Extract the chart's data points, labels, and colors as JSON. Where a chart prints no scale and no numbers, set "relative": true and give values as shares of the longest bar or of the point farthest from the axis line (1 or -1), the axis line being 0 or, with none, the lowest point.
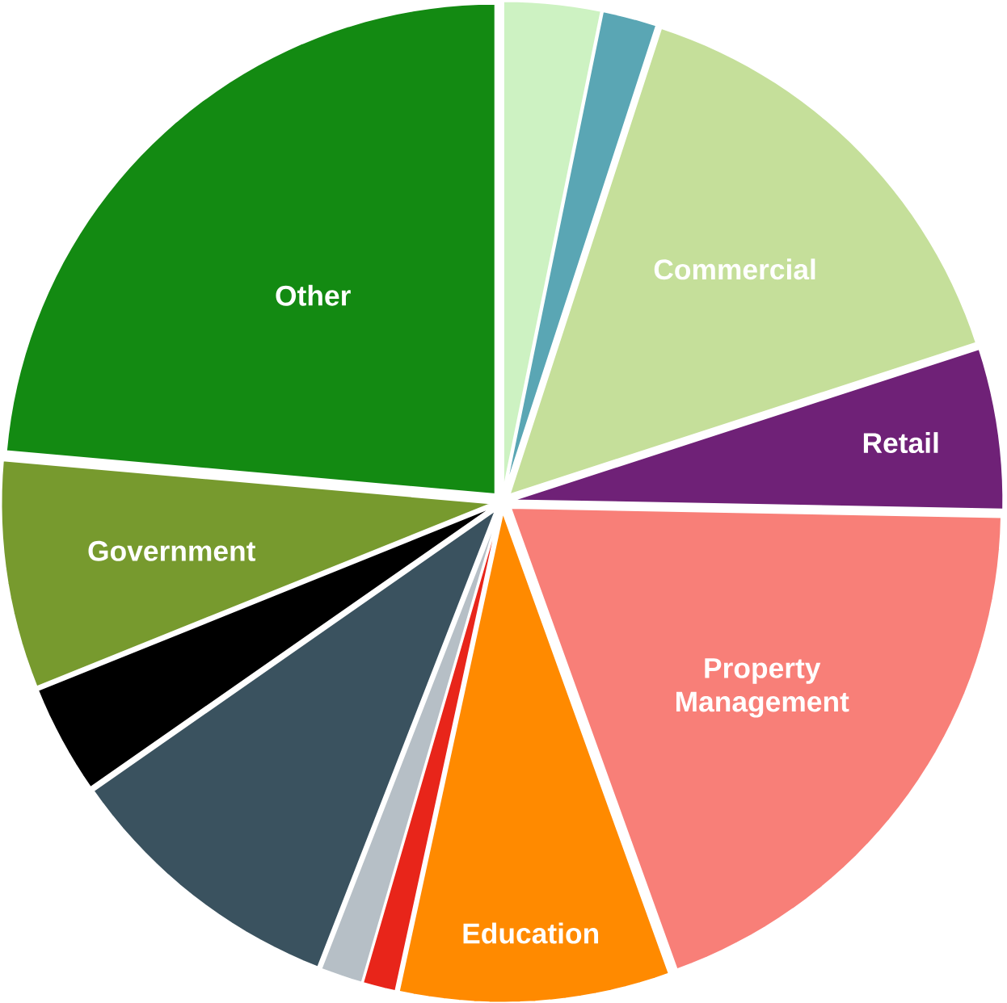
{
  "chart_data": {
    "type": "pie",
    "relative": true,
    "categories": [
      null,
      null,
      "Commercial",
      "Retail",
      "Property Management",
      "Education",
      null,
      null,
      null,
      null,
      "Government",
      "Other"
    ],
    "values": [
      3.2,
      1.8,
      15,
      5.3,
      19.2,
      8.9,
      1.1,
      1.4,
      9.4,
      3.6,
      7.5,
      23.6
    ],
    "colors": [
      "#cdf2c2",
      "#5aa6b4",
      "#c5df9a",
      "#6f2177",
      "#f87f78",
      "#ff8a00",
      "#e8251a",
      "#b6bfc6",
      "#3a525f",
      "#000000",
      "#779a2e",
      "#138a12"
    ]
  }
}
